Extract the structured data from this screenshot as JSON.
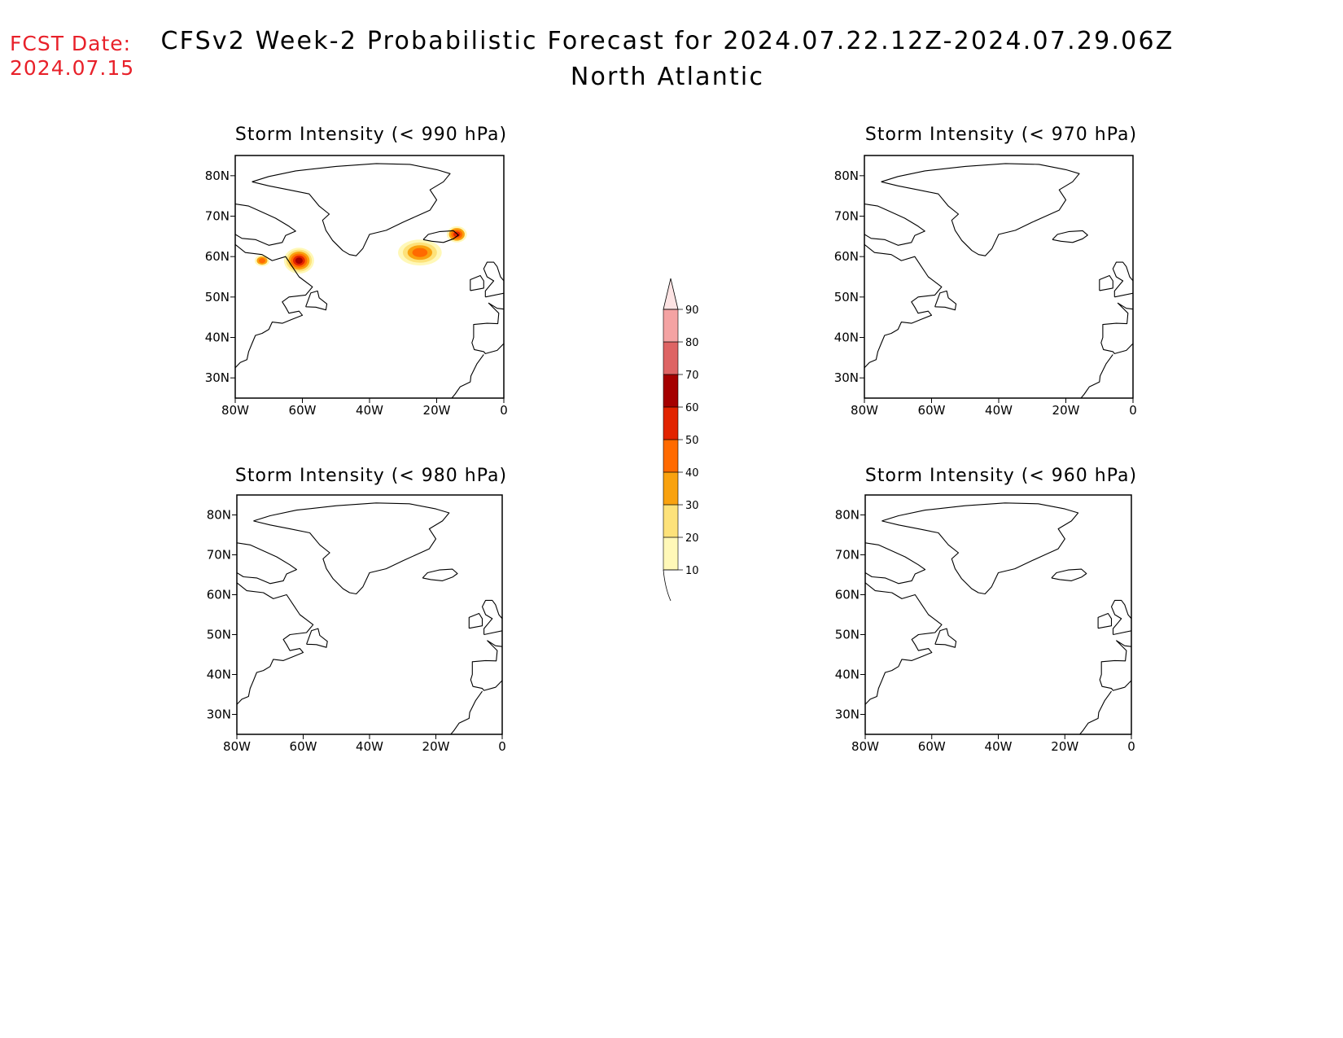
{
  "header": {
    "fcst_label": "FCST Date:",
    "fcst_date": "2024.07.15",
    "title": "CFSv2 Week-2 Probabilistic Forecast for 2024.07.22.12Z-2024.07.29.06Z",
    "subtitle": "North Atlantic"
  },
  "map": {
    "lon_range": [
      -80,
      0
    ],
    "lat_range": [
      25,
      85
    ],
    "lat_ticks": [
      {
        "value": 80,
        "label": "80N"
      },
      {
        "value": 70,
        "label": "70N"
      },
      {
        "value": 60,
        "label": "60N"
      },
      {
        "value": 50,
        "label": "50N"
      },
      {
        "value": 40,
        "label": "40N"
      },
      {
        "value": 30,
        "label": "30N"
      }
    ],
    "lon_ticks": [
      {
        "value": -80,
        "label": "80W"
      },
      {
        "value": -60,
        "label": "60W"
      },
      {
        "value": -40,
        "label": "40W"
      },
      {
        "value": -20,
        "label": "20W"
      },
      {
        "value": 0,
        "label": "0"
      }
    ]
  },
  "panels": [
    {
      "id": "p990",
      "title": "Storm Intensity (< 990 hPa)",
      "probability_areas": [
        {
          "center": [
            -72,
            59
          ],
          "radius": [
            2.2,
            1.4
          ],
          "levels": [
            10,
            30,
            40
          ]
        },
        {
          "center": [
            -61,
            59
          ],
          "radius": [
            4.5,
            3.2
          ],
          "levels": [
            10,
            20,
            30,
            40,
            50,
            60
          ]
        },
        {
          "center": [
            -25,
            61
          ],
          "radius": [
            6.5,
            3.2
          ],
          "levels": [
            10,
            20,
            30,
            40
          ]
        },
        {
          "center": [
            -14,
            65.5
          ],
          "radius": [
            3.0,
            2.0
          ],
          "levels": [
            10,
            30,
            40,
            50
          ]
        }
      ]
    },
    {
      "id": "p970",
      "title": "Storm Intensity (< 970 hPa)",
      "probability_areas": []
    },
    {
      "id": "p980",
      "title": "Storm Intensity (< 980 hPa)",
      "probability_areas": []
    },
    {
      "id": "p960",
      "title": "Storm Intensity (< 960 hPa)",
      "probability_areas": []
    }
  ],
  "colorbar": {
    "levels": [
      10,
      20,
      30,
      40,
      50,
      60,
      70,
      80,
      90
    ],
    "colors": [
      "#fff8b8",
      "#fde27a",
      "#f9a20f",
      "#ff6a00",
      "#e22400",
      "#a50000",
      "#de6464",
      "#f4a3a3",
      "#fde3e3"
    ]
  },
  "colors": {
    "coast": "#000000",
    "frame": "#000000",
    "fcst_text": "#e8212a"
  }
}
